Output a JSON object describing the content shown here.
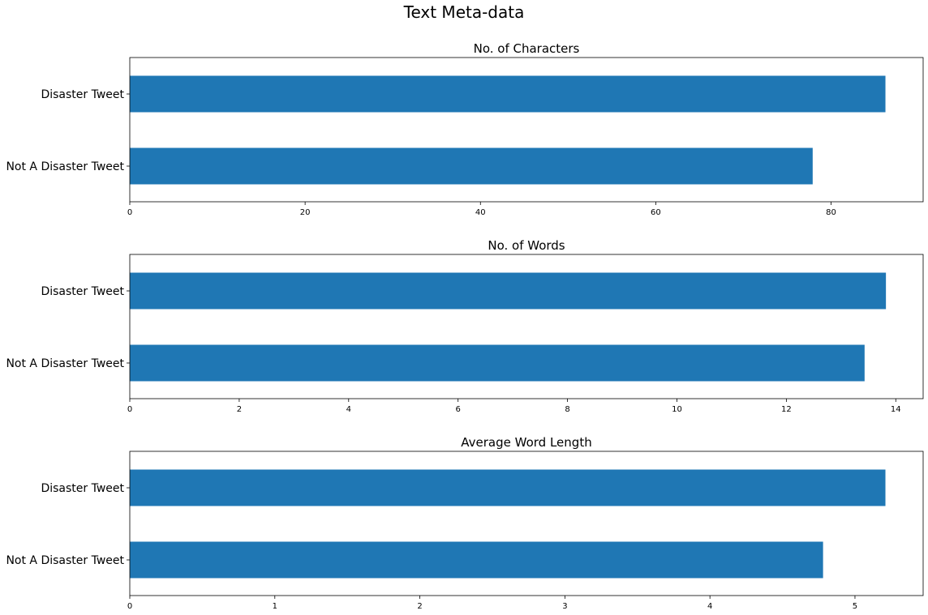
{
  "figure": {
    "title": "Text Meta-data"
  },
  "colors": {
    "bar": "#1f77b4",
    "background": "#ffffff",
    "axis": "#000000"
  },
  "chart_data": [
    {
      "type": "bar",
      "orientation": "horizontal",
      "title": "No. of Characters",
      "categories": [
        "Disaster Tweet",
        "Not A Disaster Tweet"
      ],
      "values": [
        86.2,
        77.9
      ],
      "xlim": [
        0,
        90.5
      ],
      "xticks": [
        0,
        20,
        40,
        60,
        80
      ],
      "xlabel": "",
      "ylabel": "",
      "grid": false
    },
    {
      "type": "bar",
      "orientation": "horizontal",
      "title": "No. of Words",
      "categories": [
        "Disaster Tweet",
        "Not A Disaster Tweet"
      ],
      "values": [
        13.82,
        13.43
      ],
      "xlim": [
        0,
        14.5
      ],
      "xticks": [
        0,
        2,
        4,
        6,
        8,
        10,
        12,
        14
      ],
      "xlabel": "",
      "ylabel": "",
      "grid": false
    },
    {
      "type": "bar",
      "orientation": "horizontal",
      "title": "Average Word Length",
      "categories": [
        "Disaster Tweet",
        "Not A Disaster Tweet"
      ],
      "values": [
        5.21,
        4.78
      ],
      "xlim": [
        0,
        5.47
      ],
      "xticks": [
        0,
        1,
        2,
        3,
        4,
        5
      ],
      "xlabel": "",
      "ylabel": "",
      "grid": false
    }
  ]
}
